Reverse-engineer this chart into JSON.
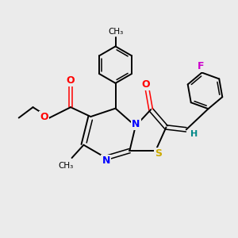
{
  "background_color": "#ebebeb",
  "bond_color": "#000000",
  "atom_colors": {
    "O": "#ff0000",
    "N": "#0000ff",
    "S": "#ccaa00",
    "F": "#cc00cc",
    "H": "#008888",
    "C": "#000000"
  },
  "figsize": [
    3.0,
    3.0
  ],
  "dpi": 100
}
